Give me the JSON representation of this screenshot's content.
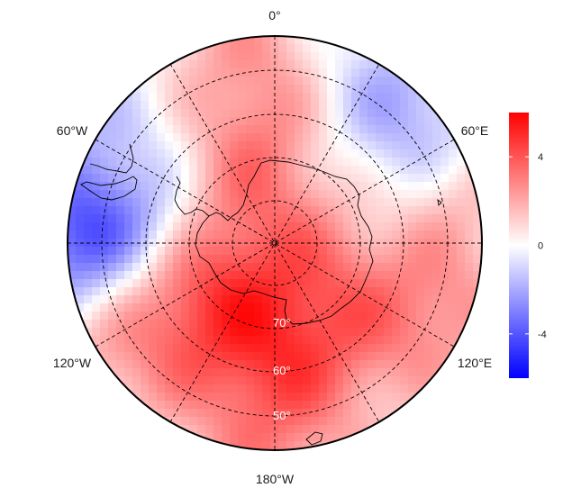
{
  "map": {
    "projection": "south polar stereographic",
    "longitude_labels": {
      "lon_0": "0°",
      "lon_60e": "60°E",
      "lon_60w": "60°W",
      "lon_120e": "120°E",
      "lon_120w": "120°W",
      "lon_180": "180°W"
    },
    "latitude_labels": {
      "lat_70": "70°",
      "lat_60": "60°",
      "lat_50": "50°"
    },
    "graticule": {
      "meridian_step_deg": 30,
      "parallels_deg": [
        -80,
        -70,
        -60,
        -50
      ],
      "style": "dashed"
    },
    "colorbar": {
      "ticks": [
        "4",
        "0",
        "-4"
      ],
      "tick_values": [
        4,
        0,
        -4
      ],
      "range": [
        -6,
        6
      ],
      "colors": {
        "low": "#0000ff",
        "mid": "#ffffff",
        "high": "#ff0000"
      }
    }
  }
}
